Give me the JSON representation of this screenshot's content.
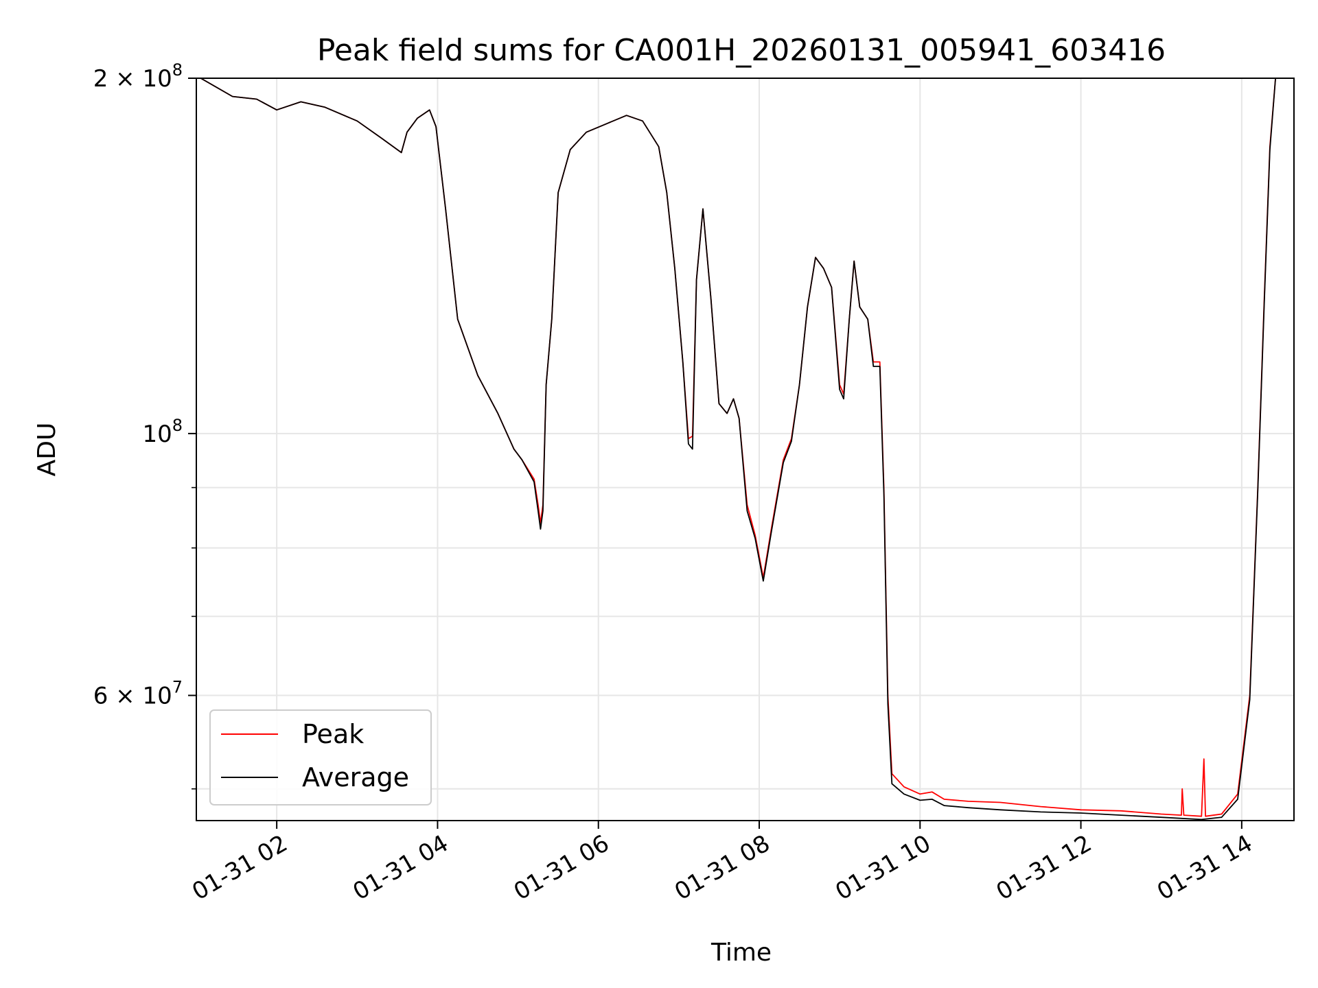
{
  "chart_data": {
    "type": "line",
    "title": "Peak field sums for CA001H_20260131_005941_603416",
    "xlabel": "Time",
    "ylabel": "ADU",
    "x_axis": {
      "unit": "hours on 2026-01-31",
      "range": [
        1.0,
        14.65
      ],
      "ticks": [
        2,
        4,
        6,
        8,
        10,
        12,
        14
      ],
      "tick_labels": [
        "01-31 02",
        "01-31 04",
        "01-31 06",
        "01-31 08",
        "01-31 10",
        "01-31 12",
        "01-31 14"
      ]
    },
    "y_axis": {
      "scale": "log",
      "range": [
        47000000,
        200000000
      ],
      "major_ticks": [
        {
          "value": 200000000,
          "mantissa": "2",
          "exponent": "8"
        },
        {
          "value": 100000000,
          "mantissa": "",
          "exponent": "8"
        },
        {
          "value": 60000000,
          "mantissa": "6",
          "exponent": "7"
        }
      ],
      "minor_ticks": [
        50000000,
        70000000,
        80000000,
        90000000
      ]
    },
    "grid": true,
    "legend": {
      "position": "lower-left",
      "entries": [
        "Peak",
        "Average"
      ]
    },
    "series": [
      {
        "name": "Peak",
        "color": "#ff0000",
        "points": [
          [
            1.0,
            201000000
          ],
          [
            1.45,
            193000000
          ],
          [
            1.75,
            192000000
          ],
          [
            2.0,
            188000000
          ],
          [
            2.3,
            191000000
          ],
          [
            2.6,
            189000000
          ],
          [
            3.0,
            184000000
          ],
          [
            3.3,
            178000000
          ],
          [
            3.55,
            173000000
          ],
          [
            3.62,
            180000000
          ],
          [
            3.75,
            185000000
          ],
          [
            3.9,
            188000000
          ],
          [
            3.98,
            182000000
          ],
          [
            4.1,
            155000000
          ],
          [
            4.25,
            125000000
          ],
          [
            4.5,
            112000000
          ],
          [
            4.75,
            104000000
          ],
          [
            4.95,
            97000000
          ],
          [
            5.05,
            95000000
          ],
          [
            5.2,
            91500000
          ],
          [
            5.25,
            87000000
          ],
          [
            5.28,
            84000000
          ],
          [
            5.31,
            87000000
          ],
          [
            5.35,
            110000000
          ],
          [
            5.42,
            125000000
          ],
          [
            5.5,
            160000000
          ],
          [
            5.65,
            174000000
          ],
          [
            5.85,
            180000000
          ],
          [
            6.1,
            183000000
          ],
          [
            6.35,
            186000000
          ],
          [
            6.55,
            184000000
          ],
          [
            6.75,
            175000000
          ],
          [
            6.85,
            160000000
          ],
          [
            6.95,
            138000000
          ],
          [
            7.05,
            115000000
          ],
          [
            7.12,
            99000000
          ],
          [
            7.17,
            99500000
          ],
          [
            7.22,
            135000000
          ],
          [
            7.3,
            155000000
          ],
          [
            7.4,
            130000000
          ],
          [
            7.5,
            106000000
          ],
          [
            7.6,
            104000000
          ],
          [
            7.68,
            107000000
          ],
          [
            7.75,
            103000000
          ],
          [
            7.85,
            87000000
          ],
          [
            7.95,
            82000000
          ],
          [
            8.05,
            75500000
          ],
          [
            8.15,
            83000000
          ],
          [
            8.3,
            95000000
          ],
          [
            8.4,
            99000000
          ],
          [
            8.5,
            110000000
          ],
          [
            8.6,
            128000000
          ],
          [
            8.7,
            141000000
          ],
          [
            8.8,
            138000000
          ],
          [
            8.9,
            133000000
          ],
          [
            9.0,
            110000000
          ],
          [
            9.05,
            108000000
          ],
          [
            9.12,
            125000000
          ],
          [
            9.18,
            140000000
          ],
          [
            9.25,
            128000000
          ],
          [
            9.35,
            125000000
          ],
          [
            9.42,
            115000000
          ],
          [
            9.5,
            115000000
          ],
          [
            9.55,
            90000000
          ],
          [
            9.6,
            60000000
          ],
          [
            9.65,
            51500000
          ],
          [
            9.8,
            50200000
          ],
          [
            10.0,
            49500000
          ],
          [
            10.15,
            49700000
          ],
          [
            10.3,
            49000000
          ],
          [
            10.6,
            48800000
          ],
          [
            11.0,
            48700000
          ],
          [
            11.5,
            48300000
          ],
          [
            12.0,
            48000000
          ],
          [
            12.5,
            47900000
          ],
          [
            13.0,
            47600000
          ],
          [
            13.25,
            47500000
          ],
          [
            13.26,
            50000000
          ],
          [
            13.28,
            47500000
          ],
          [
            13.5,
            47400000
          ],
          [
            13.53,
            53000000
          ],
          [
            13.55,
            47400000
          ],
          [
            13.75,
            47600000
          ],
          [
            13.95,
            49500000
          ],
          [
            14.1,
            60000000
          ],
          [
            14.2,
            90000000
          ],
          [
            14.28,
            130000000
          ],
          [
            14.35,
            175000000
          ],
          [
            14.42,
            200000000
          ]
        ]
      },
      {
        "name": "Average",
        "color": "#000000",
        "points": [
          [
            1.0,
            201000000
          ],
          [
            1.45,
            193000000
          ],
          [
            1.75,
            192000000
          ],
          [
            2.0,
            188000000
          ],
          [
            2.3,
            191000000
          ],
          [
            2.6,
            189000000
          ],
          [
            3.0,
            184000000
          ],
          [
            3.3,
            178000000
          ],
          [
            3.55,
            173000000
          ],
          [
            3.62,
            180000000
          ],
          [
            3.75,
            185000000
          ],
          [
            3.9,
            188000000
          ],
          [
            3.98,
            182000000
          ],
          [
            4.1,
            155000000
          ],
          [
            4.25,
            125000000
          ],
          [
            4.5,
            112000000
          ],
          [
            4.75,
            104000000
          ],
          [
            4.95,
            97000000
          ],
          [
            5.05,
            95000000
          ],
          [
            5.2,
            91000000
          ],
          [
            5.25,
            86000000
          ],
          [
            5.28,
            83000000
          ],
          [
            5.31,
            86000000
          ],
          [
            5.35,
            110000000
          ],
          [
            5.42,
            125000000
          ],
          [
            5.5,
            160000000
          ],
          [
            5.65,
            174000000
          ],
          [
            5.85,
            180000000
          ],
          [
            6.1,
            183000000
          ],
          [
            6.35,
            186000000
          ],
          [
            6.55,
            184000000
          ],
          [
            6.75,
            175000000
          ],
          [
            6.85,
            160000000
          ],
          [
            6.95,
            138000000
          ],
          [
            7.05,
            115000000
          ],
          [
            7.12,
            98000000
          ],
          [
            7.17,
            97000000
          ],
          [
            7.22,
            135000000
          ],
          [
            7.3,
            155000000
          ],
          [
            7.4,
            130000000
          ],
          [
            7.5,
            106000000
          ],
          [
            7.6,
            104000000
          ],
          [
            7.68,
            107000000
          ],
          [
            7.75,
            103000000
          ],
          [
            7.85,
            86000000
          ],
          [
            7.95,
            81500000
          ],
          [
            8.05,
            75000000
          ],
          [
            8.15,
            82500000
          ],
          [
            8.3,
            94500000
          ],
          [
            8.4,
            98500000
          ],
          [
            8.5,
            110000000
          ],
          [
            8.6,
            128000000
          ],
          [
            8.7,
            141000000
          ],
          [
            8.8,
            138000000
          ],
          [
            8.9,
            133000000
          ],
          [
            9.0,
            109000000
          ],
          [
            9.05,
            107000000
          ],
          [
            9.12,
            125000000
          ],
          [
            9.18,
            140000000
          ],
          [
            9.25,
            128000000
          ],
          [
            9.35,
            125000000
          ],
          [
            9.42,
            114000000
          ],
          [
            9.5,
            114000000
          ],
          [
            9.55,
            89000000
          ],
          [
            9.6,
            59000000
          ],
          [
            9.65,
            50500000
          ],
          [
            9.8,
            49500000
          ],
          [
            10.0,
            48900000
          ],
          [
            10.15,
            49000000
          ],
          [
            10.3,
            48400000
          ],
          [
            10.6,
            48200000
          ],
          [
            11.0,
            48000000
          ],
          [
            11.5,
            47800000
          ],
          [
            12.0,
            47700000
          ],
          [
            12.5,
            47500000
          ],
          [
            13.0,
            47300000
          ],
          [
            13.5,
            47100000
          ],
          [
            13.75,
            47300000
          ],
          [
            13.95,
            49000000
          ],
          [
            14.1,
            59500000
          ],
          [
            14.2,
            89500000
          ],
          [
            14.28,
            129000000
          ],
          [
            14.35,
            174000000
          ],
          [
            14.42,
            200000000
          ]
        ]
      }
    ]
  }
}
